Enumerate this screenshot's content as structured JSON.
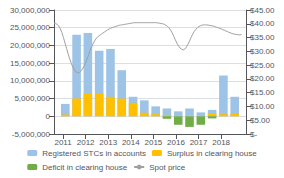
{
  "chart_data": {
    "type": "bar",
    "x": [
      2011.1,
      2011.6,
      2012.1,
      2012.6,
      2013.1,
      2013.6,
      2014.1,
      2014.6,
      2015.1,
      2015.6,
      2016.1,
      2016.6,
      2017.1,
      2017.6,
      2018.1,
      2018.6
    ],
    "xlim": [
      2010.6,
      2019.1
    ],
    "xticks": [
      2011,
      2012,
      2013,
      2014,
      2015,
      2016,
      2017,
      2018
    ],
    "ylim": [
      -5000000,
      30000000
    ],
    "yticks": [
      {
        "value": -5000000,
        "label": "-5,000,000"
      },
      0,
      {
        "value": 5000000,
        "label": "5,000,000"
      },
      {
        "value": 10000000,
        "label": "10,000,000"
      },
      {
        "value": 15000000,
        "label": "15,000,000"
      },
      {
        "value": 20000000,
        "label": "20,000,000"
      },
      {
        "value": 25000000,
        "label": "25,000,000"
      },
      {
        "value": 30000000,
        "label": "30,000,000"
      }
    ],
    "y2lim": [
      0,
      45
    ],
    "y2ticks": [
      {
        "value": 0,
        "label": "$-"
      },
      {
        "value": 5,
        "label": "$5.00"
      },
      {
        "value": 10,
        "label": "$10.00"
      },
      {
        "value": 15,
        "label": "$15.00"
      },
      {
        "value": 20,
        "label": "$20.00"
      },
      {
        "value": 25,
        "label": "$25.00"
      },
      {
        "value": 30,
        "label": "$30.00"
      },
      {
        "value": 35,
        "label": "$35.00"
      },
      {
        "value": 40,
        "label": "$40.00"
      },
      {
        "value": 45,
        "label": "$45.00"
      }
    ],
    "grid": true,
    "legend": "bottom",
    "series": [
      {
        "name": "Registered STCs in accounts",
        "color": "#9dc3e6",
        "values": [
          3500000,
          23000000,
          23500000,
          18500000,
          19000000,
          13000000,
          5500000,
          4500000,
          2800000,
          2200000,
          1400000,
          2200000,
          1100000,
          1800000,
          11500000,
          5500000
        ]
      },
      {
        "name": "Surplus in clearing house",
        "color": "#ffc000",
        "values": [
          500000,
          5000000,
          6500000,
          6500000,
          5500000,
          5000000,
          3800000,
          1000000,
          600000,
          400000,
          0,
          0,
          0,
          900000,
          600000,
          700000
        ]
      },
      {
        "name": "Deficit in clearing house",
        "color": "#70ad47",
        "values": [
          0,
          0,
          0,
          0,
          0,
          0,
          0,
          0,
          0,
          -700000,
          -2400000,
          -3000000,
          -2400000,
          -600000,
          0,
          0
        ]
      },
      {
        "name": "Spot price",
        "type": "line",
        "axis": "y2",
        "color": "#a0a0a0",
        "x": [
          2010.6,
          2010.669748,
          2010.739496,
          2010.809244,
          2010.878992,
          2010.948739,
          2011.018487,
          2011.088235,
          2011.157983,
          2011.227731,
          2011.297479,
          2011.367227,
          2011.436975,
          2011.506723,
          2011.576471,
          2011.646218,
          2011.715966,
          2011.785714,
          2011.855462,
          2011.92521,
          2011.994958,
          2012.064706,
          2012.134454,
          2012.204202,
          2012.27395,
          2012.343697,
          2012.413445,
          2012.483193,
          2012.552941,
          2012.622689,
          2012.692437,
          2012.762185,
          2012.831933,
          2012.901681,
          2012.971429,
          2013.041176,
          2013.110924,
          2013.180672,
          2013.25042,
          2013.320168,
          2013.389916,
          2013.459664,
          2013.529412,
          2013.59916,
          2013.668908,
          2013.738655,
          2013.808403,
          2013.878151,
          2013.947899,
          2014.017647,
          2014.087395,
          2014.157143,
          2014.226891,
          2014.296639,
          2014.366387,
          2014.436134,
          2014.505882,
          2014.57563,
          2014.645378,
          2014.715126,
          2014.784874,
          2014.854622,
          2014.92437,
          2014.994118,
          2015.063866,
          2015.133613,
          2015.203361,
          2015.273109,
          2015.342857,
          2015.412605,
          2015.482353,
          2015.552101,
          2015.621849,
          2015.691597,
          2015.761345,
          2015.831092,
          2015.90084,
          2015.970588,
          2016.040336,
          2016.110084,
          2016.179832,
          2016.24958,
          2016.319328,
          2016.389076,
          2016.458824,
          2016.528571,
          2016.598319,
          2016.668067,
          2016.737815,
          2016.807563,
          2016.877311,
          2016.947059,
          2017.016807,
          2017.086555,
          2017.156303,
          2017.22605,
          2017.295798,
          2017.365546,
          2017.435294,
          2017.505042,
          2017.57479,
          2017.644538,
          2017.714286,
          2017.784034,
          2017.853782,
          2017.923529,
          2017.993277,
          2018.063025,
          2018.132773,
          2018.202521,
          2018.272269,
          2018.342017,
          2018.411765,
          2018.481513,
          2018.551261,
          2018.621008,
          2018.690756,
          2018.760504,
          2018.830252,
          2018.9
        ],
        "values": [
          40.2,
          40.1,
          39.8,
          39.2,
          38.2,
          36.8,
          35.0,
          33.0,
          31.0,
          29.0,
          27.2,
          25.6,
          24.2,
          23.2,
          22.5,
          22.2,
          22.3,
          22.8,
          23.5,
          24.5,
          25.8,
          27.2,
          28.8,
          30.4,
          31.8,
          33.0,
          34.0,
          34.8,
          35.4,
          35.8,
          36.2,
          36.6,
          37.0,
          37.4,
          37.8,
          38.1,
          38.4,
          38.6,
          38.8,
          39.0,
          39.2,
          39.4,
          39.5,
          39.6,
          39.7,
          39.8,
          39.9,
          40.0,
          40.1,
          40.2,
          40.3,
          40.4,
          40.4,
          40.4,
          40.4,
          40.4,
          40.4,
          40.4,
          40.4,
          40.4,
          40.4,
          40.4,
          40.4,
          40.4,
          40.4,
          40.4,
          40.3,
          40.2,
          40.1,
          40.0,
          39.8,
          39.5,
          39.1,
          38.5,
          37.7,
          36.7,
          35.5,
          34.2,
          33.0,
          32.0,
          31.2,
          30.8,
          30.5,
          30.8,
          31.5,
          32.5,
          33.7,
          35.0,
          36.2,
          37.2,
          38.0,
          38.6,
          39.0,
          39.3,
          39.5,
          39.6,
          39.6,
          39.6,
          39.5,
          39.4,
          39.3,
          39.2,
          39.0,
          38.8,
          38.6,
          38.4,
          38.2,
          37.9,
          37.7,
          37.4,
          37.2,
          36.9,
          36.7,
          36.5,
          36.3,
          36.2,
          36.1,
          36.0,
          36.0,
          36.1
        ]
      }
    ]
  }
}
